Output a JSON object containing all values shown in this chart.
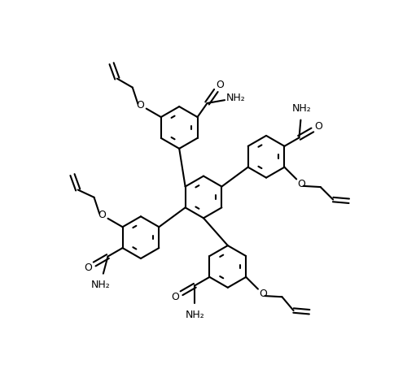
{
  "bg_color": "#ffffff",
  "line_color": "#000000",
  "lw": 1.5,
  "fs": 9.0,
  "fig_w": 5.0,
  "fig_h": 4.7,
  "dpi": 100,
  "xlim": [
    0,
    10
  ],
  "ylim": [
    0,
    9.4
  ],
  "ring_r": 0.52,
  "central_x": 5.0,
  "central_y": 4.55
}
